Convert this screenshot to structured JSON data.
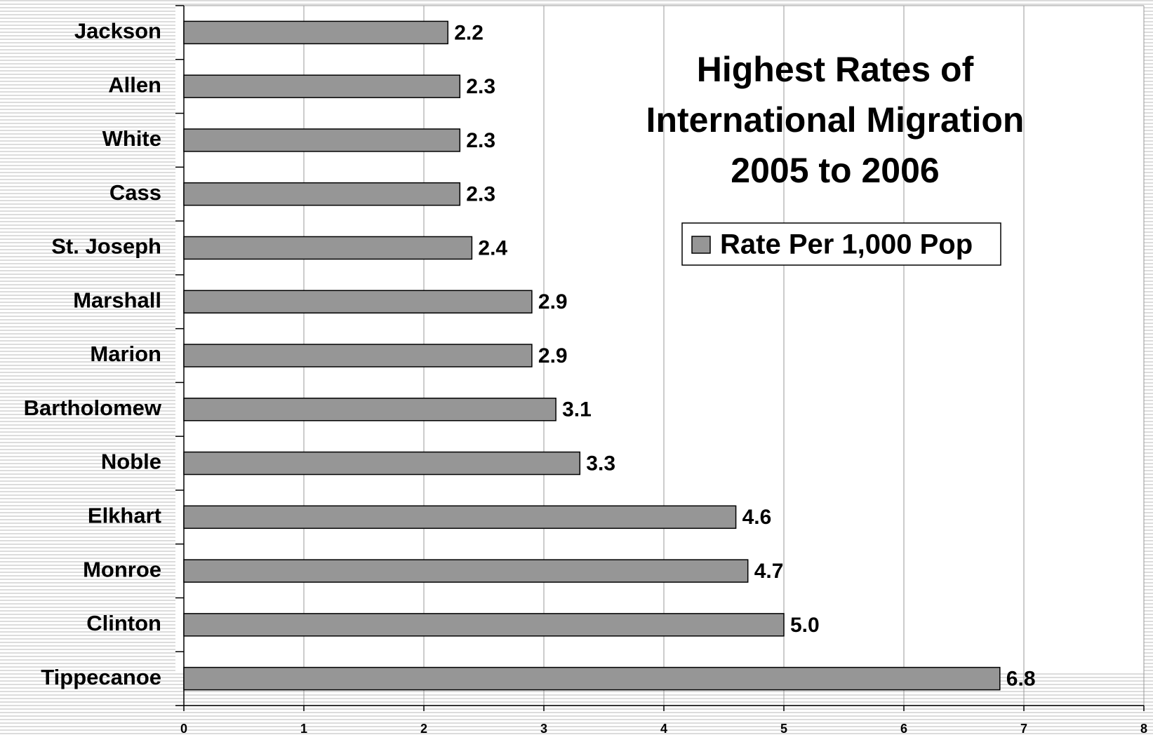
{
  "chart_data": {
    "type": "bar",
    "orientation": "horizontal",
    "title": "Highest Rates of\nInternational Migration\n2005 to 2006",
    "categories": [
      "Jackson",
      "Allen",
      "White",
      "Cass",
      "St. Joseph",
      "Marshall",
      "Marion",
      "Bartholomew",
      "Noble",
      "Elkhart",
      "Monroe",
      "Clinton",
      "Tippecanoe"
    ],
    "series": [
      {
        "name": "Rate Per 1,000 Pop",
        "color": "#969696",
        "values": [
          2.2,
          2.3,
          2.3,
          2.3,
          2.4,
          2.9,
          2.9,
          3.1,
          3.3,
          4.6,
          4.7,
          5.0,
          6.8
        ],
        "value_labels": [
          "2.2",
          "2.3",
          "2.3",
          "2.3",
          "2.4",
          "2.9",
          "2.9",
          "3.1",
          "3.3",
          "4.6",
          "4.7",
          "5.0",
          "6.8"
        ]
      }
    ],
    "xlim": [
      0,
      8
    ],
    "xticks": [
      0,
      1,
      2,
      3,
      4,
      5,
      6,
      7,
      8
    ],
    "grid": true
  }
}
